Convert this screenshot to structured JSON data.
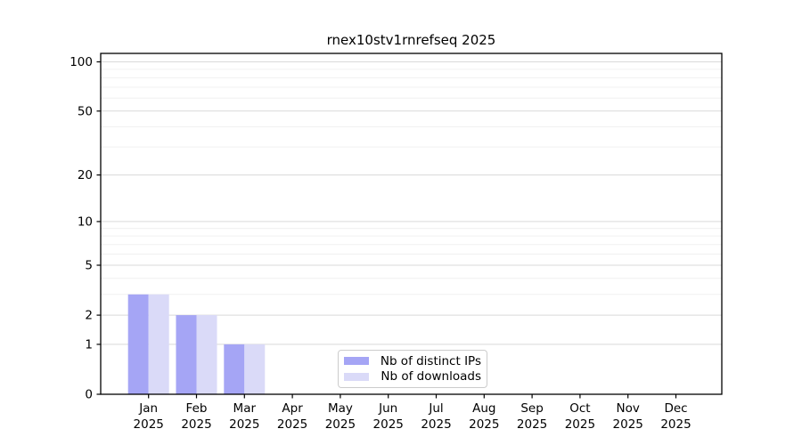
{
  "title": "rnex10stv1rnrefseq 2025",
  "colors": {
    "distinct_ips_bar": "#a5a5f5",
    "downloads_bar": "#dadaf8",
    "grid_major": "#d9d9d9",
    "grid_minor": "#f0f0f0",
    "axis": "#000000",
    "legend_border": "#cccccc",
    "background": "#ffffff"
  },
  "chart_data": {
    "type": "bar",
    "title": "rnex10stv1rnrefseq 2025",
    "yscale": "log1p",
    "grid": "horizontal",
    "legend_position": "bottom-center-inside",
    "year": "2025",
    "months": [
      "Jan",
      "Feb",
      "Mar",
      "Apr",
      "May",
      "Jun",
      "Jul",
      "Aug",
      "Sep",
      "Oct",
      "Nov",
      "Dec"
    ],
    "y_major_ticks": [
      0,
      1,
      2,
      5,
      10,
      20,
      50,
      100
    ],
    "y_minor_ticks": [
      3,
      4,
      6,
      7,
      8,
      9,
      30,
      40,
      60,
      70,
      80,
      90
    ],
    "ylim": [
      0,
      112
    ],
    "series": [
      {
        "name": "Nb of distinct IPs",
        "color": "#a5a5f5",
        "values": [
          3,
          2,
          1,
          0,
          0,
          0,
          0,
          0,
          0,
          0,
          0,
          0
        ]
      },
      {
        "name": "Nb of downloads",
        "color": "#dadaf8",
        "values": [
          3,
          2,
          1,
          0,
          0,
          0,
          0,
          0,
          0,
          0,
          0,
          0
        ]
      }
    ]
  }
}
